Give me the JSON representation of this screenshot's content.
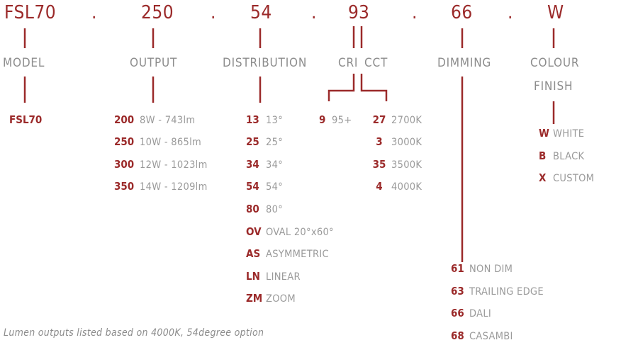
{
  "code_parts": {
    "model": "FSL70",
    "output": "250",
    "distribution": "54",
    "cri": "9",
    "cct": "3",
    "dimming": "66",
    "colour": "W",
    "separator": "."
  },
  "headings": {
    "model": "MODEL",
    "output": "OUTPUT",
    "distribution": "DISTRIBUTION",
    "cri": "CRI",
    "cct": "CCT",
    "dimming": "DIMMING",
    "colour_line1": "COLOUR",
    "colour_line2": "FINISH"
  },
  "model_options": [
    {
      "code": "FSL70",
      "desc": ""
    }
  ],
  "output_options": [
    {
      "code": "200",
      "desc": "8W - 743lm"
    },
    {
      "code": "250",
      "desc": "10W - 865lm"
    },
    {
      "code": "300",
      "desc": "12W - 1023lm"
    },
    {
      "code": "350",
      "desc": "14W - 1209lm"
    }
  ],
  "distribution_options": [
    {
      "code": "13",
      "desc": "13°"
    },
    {
      "code": "25",
      "desc": "25°"
    },
    {
      "code": "34",
      "desc": "34°"
    },
    {
      "code": "54",
      "desc": "54°"
    },
    {
      "code": "80",
      "desc": "80°"
    },
    {
      "code": "OV",
      "desc": "OVAL 20°x60°"
    },
    {
      "code": "AS",
      "desc": "ASYMMETRIC"
    },
    {
      "code": "LN",
      "desc": "LINEAR"
    },
    {
      "code": "ZM",
      "desc": "ZOOM"
    }
  ],
  "cri_options": [
    {
      "code": "9",
      "desc": "95+"
    }
  ],
  "cct_options": [
    {
      "code": "27",
      "desc": "2700K"
    },
    {
      "code": "3",
      "desc": "3000K"
    },
    {
      "code": "35",
      "desc": "3500K"
    },
    {
      "code": "4",
      "desc": "4000K"
    }
  ],
  "dimming_options": [
    {
      "code": "61",
      "desc": "NON DIM"
    },
    {
      "code": "63",
      "desc": "TRAILING EDGE"
    },
    {
      "code": "66",
      "desc": "DALI"
    },
    {
      "code": "68",
      "desc": "CASAMBI"
    }
  ],
  "colour_options": [
    {
      "code": "W",
      "desc": "WHITE"
    },
    {
      "code": "B",
      "desc": "BLACK"
    },
    {
      "code": "X",
      "desc": "CUSTOM"
    }
  ],
  "footnote": "Lumen outputs listed based on 4000K, 54degree option",
  "colors": {
    "accent": "#9b2a2a",
    "muted": "#9a9a9a"
  }
}
